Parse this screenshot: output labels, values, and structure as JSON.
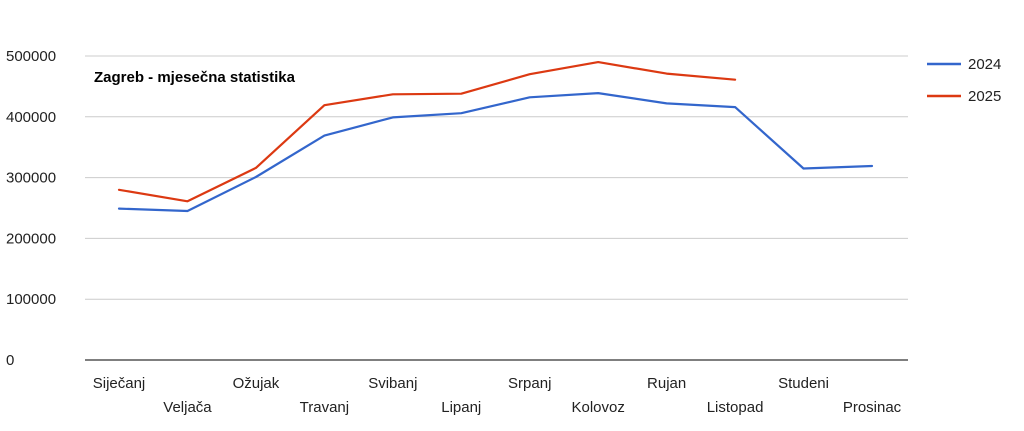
{
  "chart_data": {
    "type": "line",
    "title": "Zagreb - mjesečna statistika",
    "xlabel": "",
    "ylabel": "",
    "ylim": [
      0,
      500000
    ],
    "yticks": [
      0,
      100000,
      200000,
      300000,
      400000,
      500000
    ],
    "grid": true,
    "legend_position": "right",
    "categories": [
      "Siječanj",
      "Veljača",
      "Ožujak",
      "Travanj",
      "Svibanj",
      "Lipanj",
      "Srpanj",
      "Kolovoz",
      "Rujan",
      "Listopad",
      "Studeni",
      "Prosinac"
    ],
    "series": [
      {
        "name": "2024",
        "color": "#3366cc",
        "values": [
          249000,
          245000,
          301000,
          369000,
          399000,
          406000,
          432000,
          439000,
          422000,
          416000,
          315000,
          319000
        ]
      },
      {
        "name": "2025",
        "color": "#dc3912",
        "values": [
          280000,
          261000,
          316000,
          419000,
          437000,
          438000,
          470000,
          490000,
          471000,
          461000,
          null,
          null
        ]
      }
    ]
  }
}
